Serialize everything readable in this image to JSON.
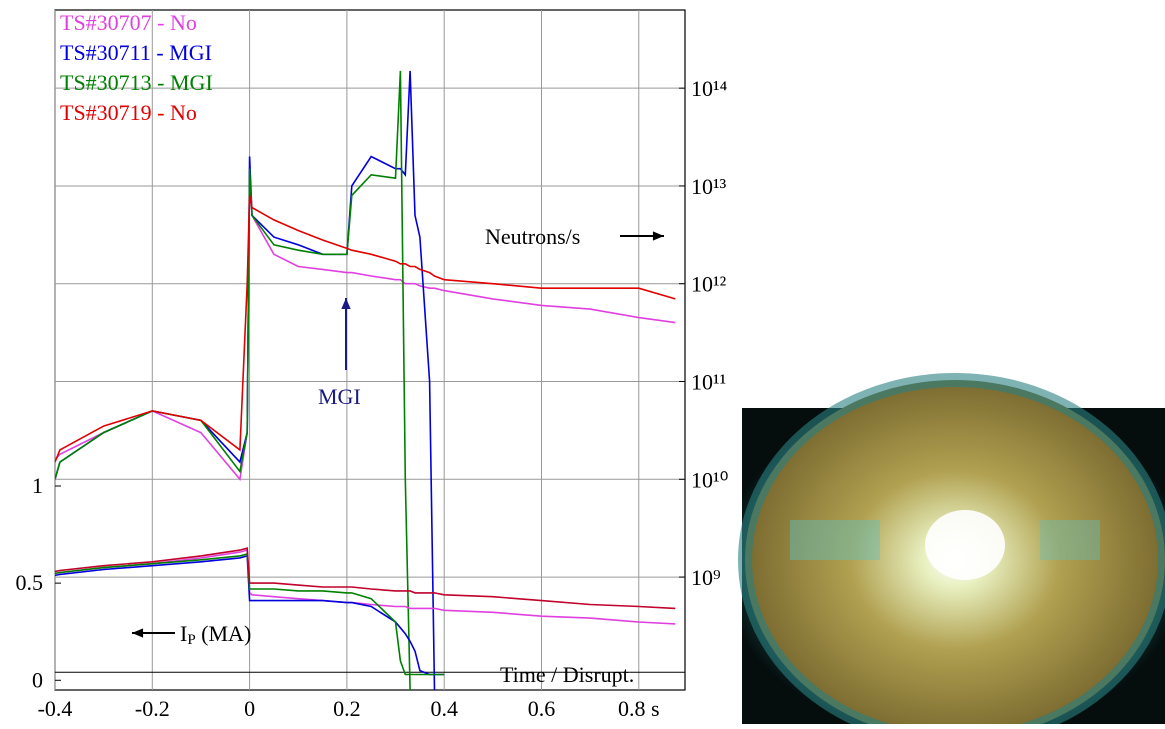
{
  "chart_data": {
    "type": "line",
    "x": [
      -0.4,
      -0.39,
      -0.3,
      -0.2,
      -0.1,
      -0.02,
      -0.005,
      0,
      0.005,
      0.05,
      0.1,
      0.15,
      0.2,
      0.21,
      0.25,
      0.3,
      0.31,
      0.32,
      0.33,
      0.34,
      0.35,
      0.37,
      0.38,
      0.4,
      0.5,
      0.6,
      0.7,
      0.8,
      0.875
    ],
    "xlim": [
      -0.4,
      0.895
    ],
    "xticks": [
      -0.4,
      -0.2,
      0,
      0.2,
      0.4,
      0.6,
      {
        "value": 0.8,
        "label": "0.8 s"
      }
    ],
    "ylim": [
      -0.05,
      3.45
    ],
    "yticks": [
      0,
      0.5,
      1
    ],
    "y2lim": [
      70000000,
      630000000000000
    ],
    "y2log": true,
    "y2ticks": [
      {
        "value": 1000000000,
        "label": "10⁹"
      },
      {
        "value": 10000000000,
        "label": "10¹⁰"
      },
      {
        "value": 100000000000,
        "label": "10¹¹"
      },
      {
        "value": 1000000000000,
        "label": "10¹²"
      },
      {
        "value": 10000000000000,
        "label": "10¹³"
      },
      {
        "value": 100000000000000,
        "label": "10¹⁴"
      }
    ],
    "grid": true,
    "legend": "upper left",
    "y2_label": "Neutrons/s",
    "y_label": {
      "main": "I",
      "sub": "P",
      "rest": " (MA)"
    },
    "x_label": "Time / Disrupt.",
    "annotation": "MGI",
    "series": [
      {
        "name": "TS#30707 - No",
        "color": "#e040e0",
        "axis": "y2",
        "values": [
          16000000000,
          18000000000,
          30000000000,
          50000000000,
          30000000000,
          10000000000,
          30000000000,
          15000000000000,
          5000000000000,
          2000000000000,
          1500000000000,
          1400000000000,
          1300000000000,
          1300000000000,
          1200000000000,
          1100000000000,
          1100000000000,
          1000000000000,
          1000000000000,
          1000000000000,
          950000000000,
          900000000000,
          900000000000,
          850000000000,
          700000000000,
          600000000000,
          550000000000,
          450000000000,
          400000000000
        ]
      },
      {
        "name": "TS#30711 - MGI",
        "color": "#0000dd",
        "axis": "y2",
        "values": [
          10000000000,
          15000000000,
          30000000000,
          50000000000,
          40000000000,
          15000000000,
          30000000000,
          20000000000000,
          5000000000000,
          3000000000000,
          2500000000000,
          2000000000000,
          2000000000000,
          10000000000000,
          20000000000000,
          15000000000000,
          15000000000000,
          13000000000000,
          150000000000000,
          5000000000000,
          3000000000000,
          100000000000,
          70000000,
          null,
          null,
          null,
          null,
          null,
          null
        ]
      },
      {
        "name": "TS#30713 - MGI",
        "color": "#008000",
        "axis": "y2",
        "values": [
          10000000000,
          15000000000,
          30000000000,
          50000000000,
          40000000000,
          12000000000,
          30000000000,
          15000000000000,
          5000000000000,
          2500000000000,
          2200000000000,
          2000000000000,
          2000000000000,
          8000000000000,
          13000000000000,
          12000000000000,
          150000000000000,
          10000000000,
          70000000,
          null,
          null,
          null,
          null,
          null,
          null,
          null,
          null,
          null,
          null
        ]
      },
      {
        "name": "TS#30719 - No",
        "color": "#e00000",
        "axis": "y2",
        "values": [
          15000000000,
          20000000000,
          35000000000,
          50000000000,
          40000000000,
          20000000000,
          1000000000000,
          8000000000000,
          6000000000000,
          4500000000000,
          3500000000000,
          2800000000000,
          2300000000000,
          2200000000000,
          2000000000000,
          1700000000000,
          1600000000000,
          1600000000000,
          1500000000000,
          1500000000000,
          1400000000000,
          1300000000000,
          1200000000000,
          1100000000000,
          1000000000000,
          900000000000,
          900000000000,
          900000000000,
          700000000000
        ]
      },
      {
        "color": "#e040e0",
        "axis": "y",
        "values": [
          0.55,
          0.555,
          0.58,
          0.6,
          0.63,
          0.66,
          0.67,
          0.45,
          0.44,
          0.43,
          0.42,
          0.41,
          0.4,
          0.4,
          0.39,
          0.38,
          0.38,
          0.38,
          0.37,
          0.37,
          0.37,
          0.37,
          0.37,
          0.36,
          0.35,
          0.33,
          0.32,
          0.3,
          0.29
        ]
      },
      {
        "color": "#0000dd",
        "axis": "y",
        "values": [
          0.54,
          0.545,
          0.57,
          0.59,
          0.61,
          0.63,
          0.64,
          0.41,
          0.41,
          0.41,
          0.41,
          0.41,
          0.4,
          0.4,
          0.38,
          0.3,
          0.27,
          0.24,
          0.2,
          0.15,
          0.05,
          0.03,
          0.03,
          0.03,
          null,
          null,
          null,
          null,
          null
        ]
      },
      {
        "color": "#008000",
        "axis": "y",
        "values": [
          0.55,
          0.555,
          0.58,
          0.6,
          0.62,
          0.64,
          0.65,
          0.47,
          0.47,
          0.47,
          0.46,
          0.46,
          0.45,
          0.45,
          0.42,
          0.3,
          0.1,
          0.03,
          0.03,
          0.03,
          0.03,
          0.03,
          0.03,
          0.03,
          null,
          null,
          null,
          null,
          null
        ]
      },
      {
        "color": "#c0002a",
        "axis": "y",
        "values": [
          0.56,
          0.565,
          0.59,
          0.61,
          0.64,
          0.67,
          0.68,
          0.5,
          0.5,
          0.5,
          0.49,
          0.48,
          0.48,
          0.48,
          0.47,
          0.46,
          0.46,
          0.46,
          0.46,
          0.45,
          0.45,
          0.45,
          0.45,
          0.44,
          0.43,
          0.41,
          0.39,
          0.38,
          0.37
        ]
      }
    ]
  }
}
